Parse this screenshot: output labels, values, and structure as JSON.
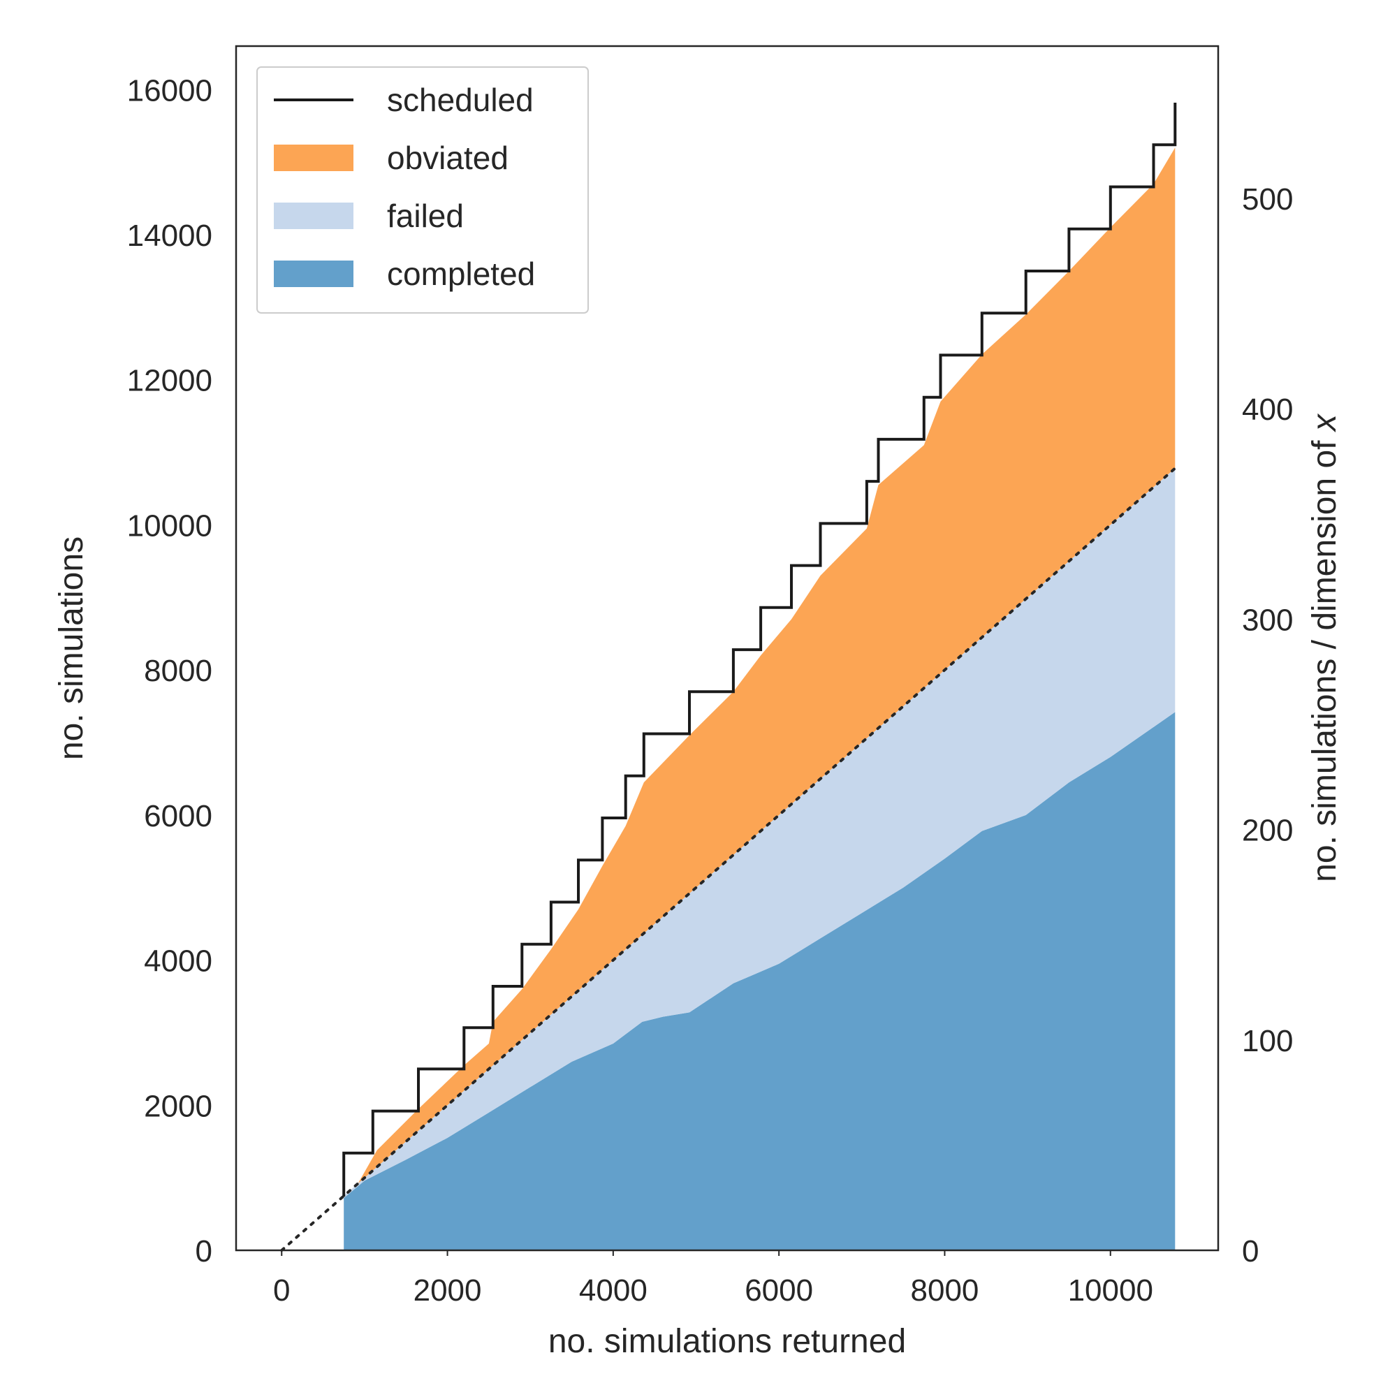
{
  "chart_data": {
    "type": "area",
    "xlabel": "no. simulations returned",
    "ylabel": "no. simulations",
    "ylabel_right_prefix": "no. simulations / dimension of ",
    "ylabel_right_var": "x",
    "xlim": [
      -550,
      11300
    ],
    "ylim": [
      0,
      16600
    ],
    "right_ylim": [
      0,
      572.4
    ],
    "x_ticks": [
      0,
      2000,
      4000,
      6000,
      8000,
      10000
    ],
    "y_ticks": [
      0,
      2000,
      4000,
      6000,
      8000,
      10000,
      12000,
      14000,
      16000
    ],
    "right_y_ticks": [
      0,
      100,
      200,
      300,
      400,
      500
    ],
    "grid": false,
    "legend_position": "top-left",
    "legend": [
      {
        "label": "scheduled",
        "kind": "line",
        "color": "#1a1a1a"
      },
      {
        "label": "obviated",
        "kind": "patch",
        "color": "#fca554"
      },
      {
        "label": "failed",
        "kind": "patch",
        "color": "#c6d7ec"
      },
      {
        "label": "completed",
        "kind": "patch",
        "color": "#63a0cb"
      }
    ],
    "scheduled_steps": [
      [
        750,
        740
      ],
      [
        750,
        1340
      ],
      [
        1100,
        1340
      ],
      [
        1100,
        1920
      ],
      [
        1650,
        1920
      ],
      [
        1650,
        2500
      ],
      [
        2200,
        2500
      ],
      [
        2200,
        3070
      ],
      [
        2550,
        3070
      ],
      [
        2550,
        3640
      ],
      [
        2900,
        3640
      ],
      [
        2900,
        4220
      ],
      [
        3250,
        4220
      ],
      [
        3250,
        4800
      ],
      [
        3580,
        4800
      ],
      [
        3580,
        5380
      ],
      [
        3870,
        5380
      ],
      [
        3870,
        5960
      ],
      [
        4150,
        5960
      ],
      [
        4150,
        6540
      ],
      [
        4370,
        6540
      ],
      [
        4370,
        7120
      ],
      [
        4920,
        7120
      ],
      [
        4920,
        7700
      ],
      [
        5450,
        7700
      ],
      [
        5450,
        8280
      ],
      [
        5780,
        8280
      ],
      [
        5780,
        8860
      ],
      [
        6150,
        8860
      ],
      [
        6150,
        9440
      ],
      [
        6500,
        9440
      ],
      [
        6500,
        10020
      ],
      [
        7060,
        10020
      ],
      [
        7060,
        10600
      ],
      [
        7200,
        10600
      ],
      [
        7200,
        11180
      ],
      [
        7750,
        11180
      ],
      [
        7750,
        11760
      ],
      [
        7950,
        11760
      ],
      [
        7950,
        12340
      ],
      [
        8450,
        12340
      ],
      [
        8450,
        12920
      ],
      [
        8980,
        12920
      ],
      [
        8980,
        13500
      ],
      [
        9500,
        13500
      ],
      [
        9500,
        14080
      ],
      [
        10000,
        14080
      ],
      [
        10000,
        14660
      ],
      [
        10520,
        14660
      ],
      [
        10520,
        15240
      ],
      [
        10780,
        15240
      ],
      [
        10780,
        15820
      ]
    ],
    "obviated_top": [
      [
        920,
        920
      ],
      [
        1150,
        1380
      ],
      [
        1650,
        1950
      ],
      [
        2200,
        2550
      ],
      [
        2500,
        2850
      ],
      [
        2550,
        3150
      ],
      [
        2900,
        3600
      ],
      [
        3250,
        4150
      ],
      [
        3580,
        4700
      ],
      [
        3870,
        5300
      ],
      [
        4150,
        5850
      ],
      [
        4370,
        6450
      ],
      [
        4920,
        7100
      ],
      [
        5450,
        7700
      ],
      [
        5780,
        8200
      ],
      [
        6150,
        8700
      ],
      [
        6500,
        9300
      ],
      [
        7060,
        9950
      ],
      [
        7200,
        10550
      ],
      [
        7750,
        11100
      ],
      [
        7950,
        11700
      ],
      [
        8450,
        12350
      ],
      [
        8980,
        12900
      ],
      [
        9500,
        13500
      ],
      [
        10000,
        14100
      ],
      [
        10520,
        14700
      ],
      [
        10780,
        15200
      ]
    ],
    "failed_top": [
      [
        750,
        750
      ],
      [
        10780,
        10780
      ]
    ],
    "completed_top": [
      [
        750,
        720
      ],
      [
        1000,
        960
      ],
      [
        1500,
        1250
      ],
      [
        2000,
        1550
      ],
      [
        2500,
        1900
      ],
      [
        3000,
        2250
      ],
      [
        3500,
        2600
      ],
      [
        4000,
        2850
      ],
      [
        4350,
        3150
      ],
      [
        4600,
        3220
      ],
      [
        4920,
        3280
      ],
      [
        5450,
        3680
      ],
      [
        6000,
        3950
      ],
      [
        6500,
        4300
      ],
      [
        7000,
        4650
      ],
      [
        7500,
        5000
      ],
      [
        8000,
        5400
      ],
      [
        8450,
        5780
      ],
      [
        8980,
        6000
      ],
      [
        9500,
        6450
      ],
      [
        10000,
        6800
      ],
      [
        10780,
        7420
      ]
    ]
  }
}
